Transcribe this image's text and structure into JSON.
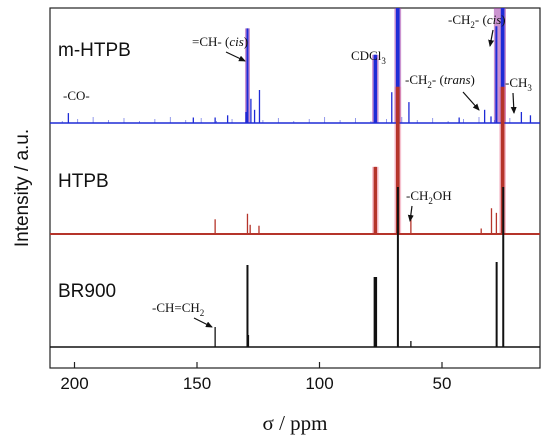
{
  "chart_data": {
    "type": "line",
    "title": "",
    "xlabel": "σ / ppm",
    "ylabel": "Intensity / a.u.",
    "xlim": [
      210,
      10
    ],
    "x_reversed": true,
    "x_ticks": [
      200,
      150,
      100,
      50
    ],
    "y_ticks": [],
    "grid": false,
    "series": [
      {
        "name": "m-HTPB",
        "color": "#1e2bd6",
        "peaks": [
          {
            "x": 202.5,
            "h": 0.09
          },
          {
            "x": 151.5,
            "h": 0.05
          },
          {
            "x": 142.6,
            "h": 0.05
          },
          {
            "x": 137.5,
            "h": 0.07
          },
          {
            "x": 130.0,
            "h": 0.1
          },
          {
            "x": 129.4,
            "h": 0.86
          },
          {
            "x": 128.0,
            "h": 0.22
          },
          {
            "x": 126.5,
            "h": 0.12
          },
          {
            "x": 124.5,
            "h": 0.3
          },
          {
            "x": 77.5,
            "h": 0.62
          },
          {
            "x": 76.9,
            "h": 0.62
          },
          {
            "x": 70.5,
            "h": 0.28
          },
          {
            "x": 68.4,
            "h": 1.6
          },
          {
            "x": 67.7,
            "h": 1.6
          },
          {
            "x": 63.5,
            "h": 0.19
          },
          {
            "x": 43.0,
            "h": 0.05
          },
          {
            "x": 32.6,
            "h": 0.12
          },
          {
            "x": 30.0,
            "h": 0.06
          },
          {
            "x": 27.8,
            "h": 0.88
          },
          {
            "x": 25.6,
            "h": 1.6
          },
          {
            "x": 24.9,
            "h": 1.6
          },
          {
            "x": 17.6,
            "h": 0.1
          },
          {
            "x": 13.9,
            "h": 0.07
          }
        ]
      },
      {
        "name": "HTPB",
        "color": "#b5342a",
        "peaks": [
          {
            "x": 142.6,
            "h": 0.16
          },
          {
            "x": 129.4,
            "h": 0.22
          },
          {
            "x": 128.3,
            "h": 0.1
          },
          {
            "x": 124.7,
            "h": 0.09
          },
          {
            "x": 77.5,
            "h": 0.73
          },
          {
            "x": 76.9,
            "h": 0.73
          },
          {
            "x": 68.4,
            "h": 1.6
          },
          {
            "x": 67.7,
            "h": 1.6
          },
          {
            "x": 62.7,
            "h": 0.16
          },
          {
            "x": 34.0,
            "h": 0.06
          },
          {
            "x": 29.8,
            "h": 0.28
          },
          {
            "x": 27.8,
            "h": 0.23
          },
          {
            "x": 25.6,
            "h": 1.6
          },
          {
            "x": 24.9,
            "h": 1.6
          }
        ]
      },
      {
        "name": "BR900",
        "color": "#111111",
        "peaks": [
          {
            "x": 142.6,
            "h": 0.2
          },
          {
            "x": 129.4,
            "h": 0.82
          },
          {
            "x": 129.0,
            "h": 0.12
          },
          {
            "x": 77.5,
            "h": 0.7
          },
          {
            "x": 76.9,
            "h": 0.7
          },
          {
            "x": 68.0,
            "h": 1.6
          },
          {
            "x": 62.7,
            "h": 0.06
          },
          {
            "x": 27.7,
            "h": 0.85
          },
          {
            "x": 25.0,
            "h": 1.6
          }
        ]
      }
    ],
    "annotations": [
      {
        "label": "-CO-"
      },
      {
        "label": "=CH- (",
        "italic": "cis",
        "after": ")"
      },
      {
        "label": "CDCl",
        "sub": "3"
      },
      {
        "label": "-CH",
        "sub": "2",
        "after": "- (",
        "italic": "cis",
        "end": ")"
      },
      {
        "label": "-CH",
        "sub": "2",
        "after": "- (",
        "italic": "trans",
        "end": ")"
      },
      {
        "label": "-CH",
        "sub": "3"
      },
      {
        "label": "-CH",
        "sub": "2",
        "after": "OH"
      },
      {
        "label": "-CH=CH",
        "sub": "2"
      }
    ]
  }
}
